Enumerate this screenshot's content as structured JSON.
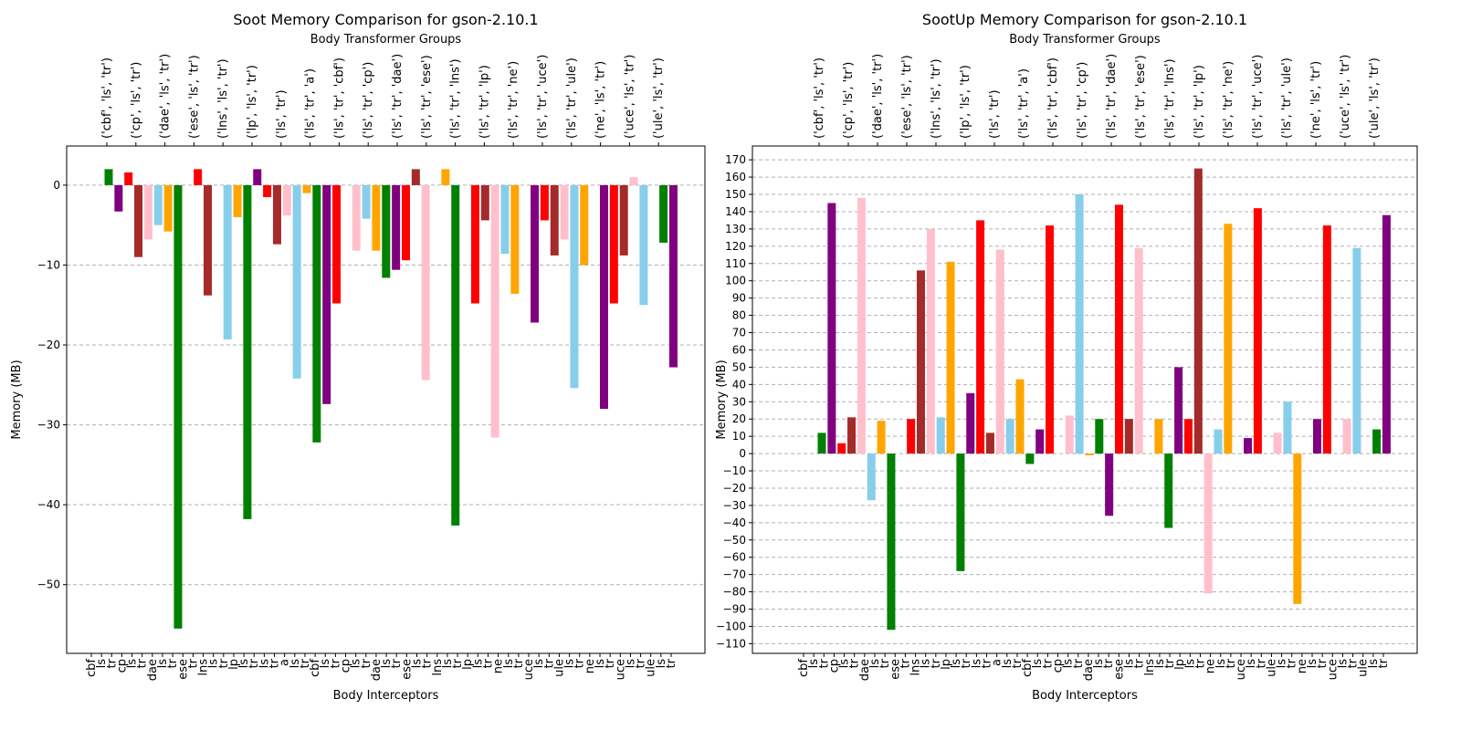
{
  "chart_data": [
    {
      "type": "bar",
      "title": "Soot Memory Comparison for gson-2.10.1",
      "subtitle": "Body Transformer Groups",
      "xlabel": "Body Interceptors",
      "ylabel": "Memory (MB)",
      "groups": [
        "('cbf', 'ls', 'tr')",
        "('cp', 'ls', 'tr')",
        "('dae', 'ls', 'tr')",
        "('ese', 'ls', 'tr')",
        "('lns', 'ls', 'tr')",
        "('lp', 'ls', 'tr')",
        "('ls', 'tr')",
        "('ls', 'tr', 'a')",
        "('ls', 'tr', 'cbf')",
        "('ls', 'tr', 'cp')",
        "('ls', 'tr', 'dae')",
        "('ls', 'tr', 'ese')",
        "('ls', 'tr', 'lns')",
        "('ls', 'tr', 'lp')",
        "('ls', 'tr', 'ne')",
        "('ls', 'tr', 'uce')",
        "('ls', 'tr', 'ule')",
        "('ne', 'ls', 'tr')",
        "('uce', 'ls', 'tr')",
        "('ule', 'ls', 'tr')"
      ],
      "categories": [
        "cbf",
        "ls",
        "tr",
        "cp",
        "ls",
        "tr",
        "dae",
        "ls",
        "tr",
        "ese",
        "tr",
        "lns",
        "ls",
        "tr",
        "lp",
        "ls",
        "tr",
        "ls",
        "tr",
        "a",
        "ls",
        "tr",
        "cbf",
        "ls",
        "tr",
        "cp",
        "ls",
        "tr",
        "dae",
        "ls",
        "tr",
        "ese",
        "ls",
        "tr",
        "lns",
        "ls",
        "tr",
        "lp",
        "ls",
        "tr",
        "ne",
        "ls",
        "tr",
        "uce",
        "ls",
        "tr",
        "ule",
        "ls",
        "tr",
        "ne",
        "ls",
        "tr",
        "uce",
        "ls",
        "tr",
        "ule",
        "ls",
        "tr"
      ],
      "values": [
        2.0,
        -3.3,
        1.6,
        -9.0,
        -6.8,
        -5.0,
        -5.8,
        -55.5,
        0,
        2.0,
        -13.8,
        0,
        -19.3,
        -4.0,
        -41.8,
        2.0,
        -1.5,
        -7.4,
        -3.8,
        -24.2,
        -1.0,
        -32.2,
        -27.4,
        -14.8,
        0,
        -8.2,
        -4.2,
        -8.2,
        -11.6,
        -10.6,
        -9.4,
        2.0,
        -24.4,
        0,
        2.0,
        -42.6,
        0,
        -14.8,
        -4.4,
        -31.6,
        -8.6,
        -13.6,
        0,
        -17.2,
        -4.4,
        -8.8,
        -6.8,
        -25.4,
        -10.0,
        0,
        -28.0,
        -14.8,
        -8.8,
        1.0,
        -15.0,
        0,
        -7.2,
        -22.8
      ],
      "colors": [
        "green",
        "purple",
        "red",
        "brown",
        "pink",
        "skyblue",
        "orange"
      ],
      "ylim": [
        -58.6,
        4.9
      ],
      "yticks": [
        {
          "value": -50,
          "label": "−50"
        },
        {
          "value": -40,
          "label": "−40"
        },
        {
          "value": -30,
          "label": "−30"
        },
        {
          "value": -20,
          "label": "−20"
        },
        {
          "value": -10,
          "label": "−10"
        },
        0
      ],
      "grid": true
    },
    {
      "type": "bar",
      "title": "SootUp Memory Comparison for gson-2.10.1",
      "subtitle": "Body Transformer Groups",
      "xlabel": "Body Interceptors",
      "ylabel": "Memory (MB)",
      "groups": [
        "('cbf', 'ls', 'tr')",
        "('cp', 'ls', 'tr')",
        "('dae', 'ls', 'tr')",
        "('ese', 'ls', 'tr')",
        "('lns', 'ls', 'tr')",
        "('lp', 'ls', 'tr')",
        "('ls', 'tr')",
        "('ls', 'tr', 'a')",
        "('ls', 'tr', 'cbf')",
        "('ls', 'tr', 'cp')",
        "('ls', 'tr', 'dae')",
        "('ls', 'tr', 'ese')",
        "('ls', 'tr', 'lns')",
        "('ls', 'tr', 'lp')",
        "('ls', 'tr', 'ne')",
        "('ls', 'tr', 'uce')",
        "('ls', 'tr', 'ule')",
        "('ne', 'ls', 'tr')",
        "('uce', 'ls', 'tr')",
        "('ule', 'ls', 'tr')"
      ],
      "categories": [
        "cbf",
        "ls",
        "tr",
        "cp",
        "ls",
        "tr",
        "dae",
        "ls",
        "tr",
        "ese",
        "tr",
        "lns",
        "ls",
        "tr",
        "lp",
        "ls",
        "tr",
        "ls",
        "tr",
        "a",
        "ls",
        "tr",
        "cbf",
        "ls",
        "tr",
        "cp",
        "ls",
        "tr",
        "dae",
        "ls",
        "tr",
        "ese",
        "ls",
        "tr",
        "lns",
        "ls",
        "tr",
        "lp",
        "ls",
        "tr",
        "ne",
        "ls",
        "tr",
        "uce",
        "ls",
        "tr",
        "ule",
        "ls",
        "tr",
        "ne",
        "ls",
        "tr",
        "uce",
        "ls",
        "tr",
        "ule",
        "ls",
        "tr"
      ],
      "values": [
        12,
        145,
        6,
        21,
        148,
        -27,
        19,
        -102,
        0,
        20,
        106,
        130,
        21,
        111,
        -68,
        35,
        135,
        12,
        118,
        20,
        43,
        -6,
        14,
        132,
        0,
        22,
        150,
        -1,
        20,
        -36,
        144,
        20,
        119,
        0,
        20,
        -43,
        50,
        20,
        165,
        -81,
        14,
        133,
        0,
        9,
        142,
        0,
        12,
        30,
        -87,
        0,
        20,
        132,
        0,
        20,
        119,
        0,
        14,
        138
      ],
      "colors": [
        "green",
        "purple",
        "red",
        "brown",
        "pink",
        "skyblue",
        "orange"
      ],
      "ylim": [
        -115.6,
        178
      ],
      "yticks": [
        {
          "value": -110,
          "label": "−110"
        },
        {
          "value": -100,
          "label": "−100"
        },
        {
          "value": -90,
          "label": "−90"
        },
        {
          "value": -80,
          "label": "−80"
        },
        {
          "value": -70,
          "label": "−70"
        },
        {
          "value": -60,
          "label": "−60"
        },
        {
          "value": -50,
          "label": "−50"
        },
        {
          "value": -40,
          "label": "−40"
        },
        {
          "value": -30,
          "label": "−30"
        },
        {
          "value": -20,
          "label": "−20"
        },
        {
          "value": -10,
          "label": "−10"
        },
        0,
        10,
        20,
        30,
        40,
        50,
        60,
        70,
        80,
        90,
        100,
        110,
        120,
        130,
        140,
        150,
        160,
        170
      ],
      "grid": true
    }
  ]
}
